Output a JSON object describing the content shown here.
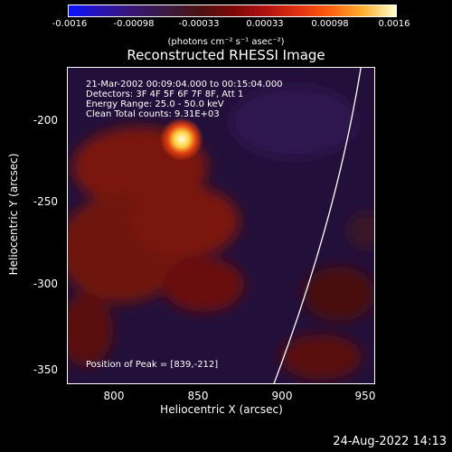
{
  "colorbar": {
    "ticks": [
      "-0.0016",
      "-0.00098",
      "-0.00033",
      "0.00033",
      "0.00098",
      "0.0016"
    ],
    "units": "(photons cm⁻² s⁻¹ asec⁻²)"
  },
  "plot": {
    "title": "Reconstructed RHESSI Image",
    "info_lines": [
      "21-Mar-2002 00:09:04.000 to 00:15:04.000",
      "Detectors: 3F 4F 5F 6F 7F 8F, Att 1",
      "Energy Range: 25.0 - 50.0 keV",
      "Clean     Total counts: 9.31E+03"
    ],
    "peak_label": "Position of Peak = [839,-212]",
    "x_ticks": [
      "800",
      "850",
      "900",
      "950"
    ],
    "y_ticks": [
      "-200",
      "-250",
      "-300",
      "-350"
    ],
    "xlabel": "Heliocentric X (arcsec)",
    "ylabel": "Heliocentric Y (arcsec)"
  },
  "footer": {
    "timestamp": "24-Aug-2022 14:13"
  }
}
